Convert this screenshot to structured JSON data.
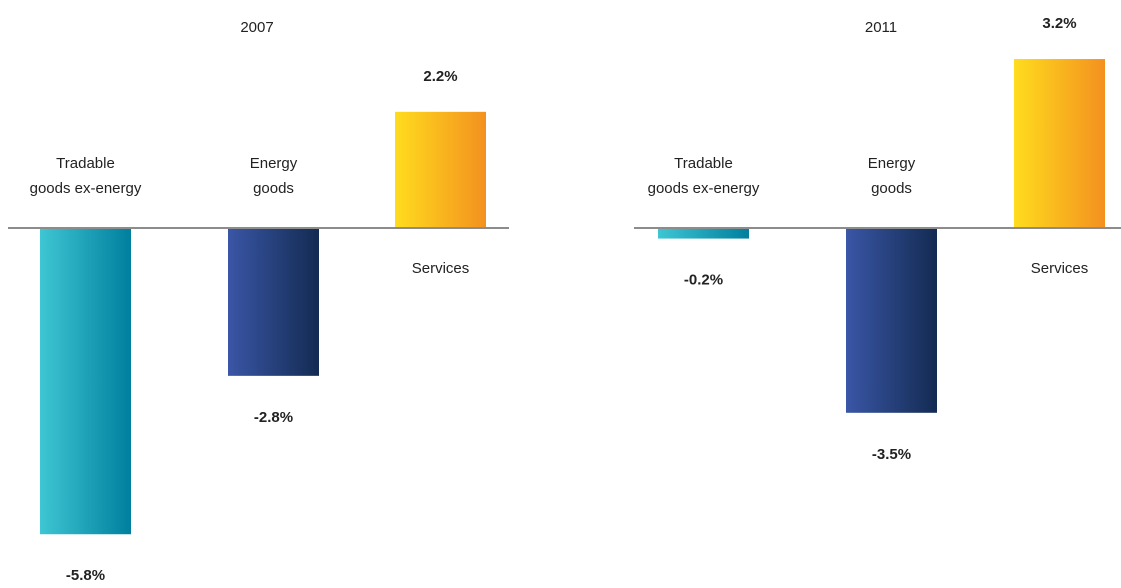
{
  "chart_data": [
    {
      "type": "bar",
      "title": "2007",
      "categories": [
        {
          "lines": [
            "Tradable",
            "goods ex-energy"
          ]
        },
        {
          "lines": [
            "Energy",
            "goods"
          ]
        },
        {
          "lines": [
            "Services"
          ]
        }
      ],
      "values": [
        -5.8,
        -2.8,
        2.2
      ],
      "value_labels": [
        "-5.8%",
        "-2.8%",
        "2.2%"
      ],
      "ylim": [
        -6.5,
        3.5
      ],
      "grid": false
    },
    {
      "type": "bar",
      "title": "2011",
      "categories": [
        {
          "lines": [
            "Tradable",
            "goods ex-energy"
          ]
        },
        {
          "lines": [
            "Energy",
            "goods"
          ]
        },
        {
          "lines": [
            "Services"
          ]
        }
      ],
      "values": [
        -0.2,
        -3.5,
        3.2
      ],
      "value_labels": [
        "-0.2%",
        "-3.5%",
        "3.2%"
      ],
      "ylim": [
        -6.5,
        3.5
      ],
      "grid": false
    }
  ],
  "colors": {
    "tradable_start": "#3ec6d3",
    "tradable_end": "#007f9e",
    "energy_start": "#3a56a6",
    "energy_end": "#132b52",
    "services_start": "#ffdc1e",
    "services_end": "#f3911f",
    "axis": "#8c8c8c"
  }
}
